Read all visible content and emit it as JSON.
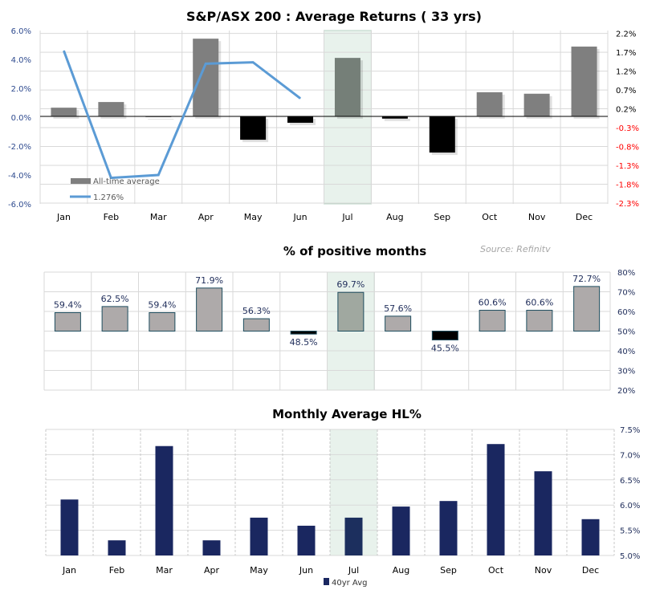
{
  "chart_data": [
    {
      "type": "bar",
      "title": "S&P/ASX 200 : Average Returns ( 33 yrs)",
      "categories": [
        "Jan",
        "Feb",
        "Mar",
        "Apr",
        "May",
        "Jun",
        "Jul",
        "Aug",
        "Sep",
        "Oct",
        "Nov",
        "Dec"
      ],
      "highlight_category": "Jul",
      "series": [
        {
          "name": "All-time average",
          "kind": "bar",
          "axis": "right",
          "values": [
            0.23,
            0.38,
            0.0,
            2.06,
            -0.62,
            -0.17,
            1.55,
            -0.06,
            -0.96,
            0.64,
            0.6,
            1.85
          ]
        },
        {
          "name": "1.276%",
          "kind": "line",
          "axis": "left",
          "values": [
            4.6,
            -4.2,
            -4.0,
            3.7,
            3.8,
            1.3,
            null,
            null,
            null,
            null,
            null,
            null
          ]
        }
      ],
      "left_axis": {
        "ylim": [
          -6,
          6
        ],
        "ticks": [
          "6.0%",
          "4.0%",
          "2.0%",
          "0.0%",
          "-2.0%",
          "-4.0%",
          "-6.0%"
        ]
      },
      "right_axis": {
        "ylim": [
          -2.3,
          2.2
        ],
        "ticks": [
          "2.2%",
          "1.7%",
          "1.2%",
          "0.7%",
          "0.2%",
          "-0.3%",
          "-0.8%",
          "-1.3%",
          "-1.8%",
          "-2.3%"
        ]
      },
      "grid": true,
      "legend": "bottom-left",
      "colors": {
        "positive": "#7f7f7f",
        "negative": "#000000",
        "line": "#5b9bd5",
        "left_ticks": "#2f4b8f",
        "right_neg_ticks": "#ff0000",
        "highlight": "#e8f2ec"
      }
    },
    {
      "type": "bar",
      "title": "% of positive months",
      "source": "Source: Refinitv",
      "categories": [
        "Jan",
        "Feb",
        "Mar",
        "Apr",
        "May",
        "Jun",
        "Jul",
        "Aug",
        "Sep",
        "Oct",
        "Nov",
        "Dec"
      ],
      "baseline": 50,
      "values": [
        59.4,
        62.5,
        59.4,
        71.9,
        56.3,
        48.5,
        69.7,
        57.6,
        45.5,
        60.6,
        60.6,
        72.7
      ],
      "data_labels": [
        "59.4%",
        "62.5%",
        "59.4%",
        "71.9%",
        "56.3%",
        "48.5%",
        "69.7%",
        "57.6%",
        "45.5%",
        "60.6%",
        "60.6%",
        "72.7%"
      ],
      "ylim": [
        20,
        80
      ],
      "ticks": [
        "80%",
        "70%",
        "60%",
        "50%",
        "40%",
        "30%",
        "20%"
      ],
      "grid": true,
      "highlight_category": "Jul",
      "colors": {
        "bar": "#aeaaaa",
        "below": "#000000",
        "outline": "#1f4e5f",
        "label": "#1f2d5a"
      }
    },
    {
      "type": "bar",
      "title": "Monthly Average HL%",
      "categories": [
        "Jan",
        "Feb",
        "Mar",
        "Apr",
        "May",
        "Jun",
        "Jul",
        "Aug",
        "Sep",
        "Oct",
        "Nov",
        "Dec"
      ],
      "series": [
        {
          "name": "40yr Avg",
          "values": [
            6.11,
            5.3,
            7.17,
            5.3,
            5.75,
            5.59,
            5.75,
            5.97,
            6.08,
            7.21,
            6.67,
            5.72
          ]
        }
      ],
      "ylim": [
        5.0,
        7.5
      ],
      "ticks": [
        "7.5%",
        "7.0%",
        "6.5%",
        "6.0%",
        "5.5%",
        "5.0%"
      ],
      "grid": true,
      "legend": "bottom",
      "highlight_category": "Jul",
      "colors": {
        "bar": "#1a2760",
        "ticks": "#1f2d5a"
      }
    }
  ]
}
